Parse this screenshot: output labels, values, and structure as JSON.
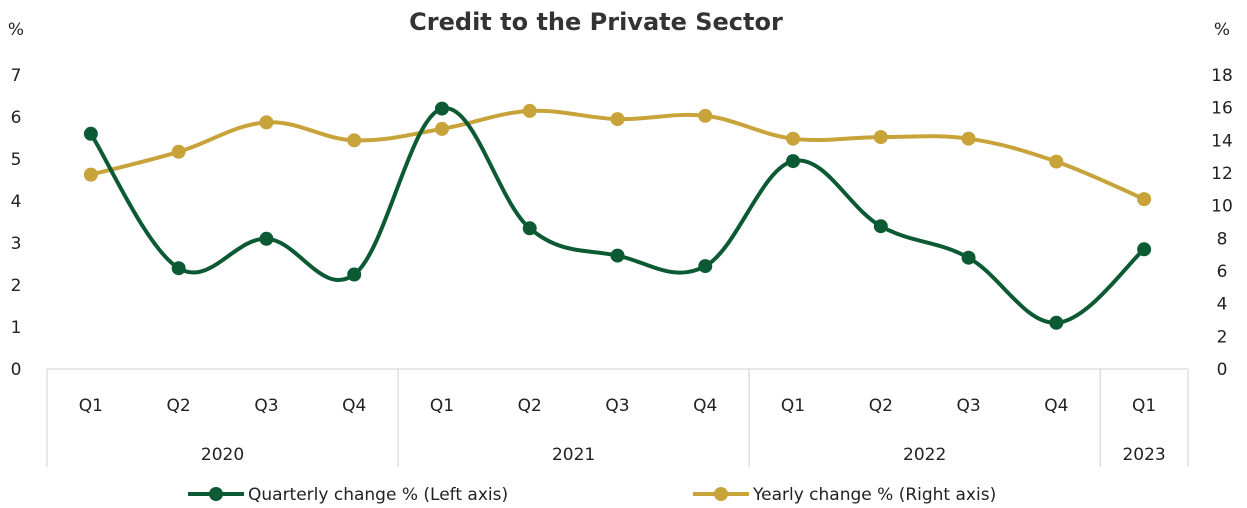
{
  "chart_data": {
    "type": "line",
    "title": "Credit to the Private Sector",
    "left_axis": {
      "unit": "%",
      "ticks": [
        "0",
        "1",
        "2",
        "3",
        "4",
        "5",
        "6",
        "7"
      ],
      "min": 0,
      "max": 7
    },
    "right_axis": {
      "unit": "%",
      "ticks": [
        "0",
        "2",
        "4",
        "6",
        "8",
        "10",
        "12",
        "14",
        "16",
        "18"
      ],
      "min": 0,
      "max": 18
    },
    "categories": [
      "Q1",
      "Q2",
      "Q3",
      "Q4",
      "Q1",
      "Q2",
      "Q3",
      "Q4",
      "Q1",
      "Q2",
      "Q3",
      "Q4",
      "Q1"
    ],
    "years": [
      {
        "label": "2020",
        "count": 4
      },
      {
        "label": "2021",
        "count": 4
      },
      {
        "label": "2022",
        "count": 4
      },
      {
        "label": "2023",
        "count": 1
      }
    ],
    "series": [
      {
        "name": "Quarterly change % (Left axis)",
        "axis": "left",
        "color": "#0b5a34",
        "values": [
          5.6,
          2.4,
          3.1,
          2.25,
          6.2,
          3.35,
          2.7,
          2.45,
          4.95,
          3.4,
          2.65,
          1.1,
          2.85
        ]
      },
      {
        "name": "Yearly change % (Right axis)",
        "axis": "right",
        "color": "#c7a33a",
        "values": [
          11.9,
          13.3,
          15.1,
          14.0,
          14.7,
          15.8,
          15.3,
          15.5,
          14.1,
          14.2,
          14.1,
          12.7,
          10.4
        ]
      }
    ],
    "legend_position": "bottom",
    "grid": false
  }
}
